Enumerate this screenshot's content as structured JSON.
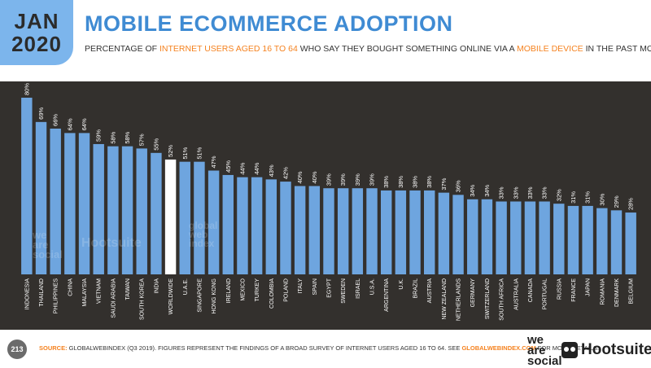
{
  "header": {
    "month": "JAN",
    "year": "2020",
    "title": "MOBILE ECOMMERCE ADOPTION",
    "subtitle_parts": [
      "PERCENTAGE OF ",
      "INTERNET USERS AGED 16 TO 64",
      " WHO SAY THEY BOUGHT SOMETHING ONLINE VIA A ",
      "MOBILE DEVICE",
      " IN THE PAST MONTH"
    ]
  },
  "colors": {
    "bar": "#6ea5df",
    "highlight_bar": "#ffffff",
    "panel": "#33302d",
    "accent": "#f5821f",
    "title": "#3f8bd3"
  },
  "watermarks": {
    "we_are_social": "we are social",
    "hootsuite": "Hootsuite",
    "gwi": "global web index"
  },
  "chart_data": {
    "type": "bar",
    "title": "MOBILE ECOMMERCE ADOPTION",
    "xlabel": "",
    "ylabel": "",
    "ylim": [
      0,
      80
    ],
    "grid": false,
    "highlight": "WORLDWIDE",
    "categories": [
      "INDONESIA",
      "THAILAND",
      "PHILIPPINES",
      "CHINA",
      "MALAYSIA",
      "VIETNAM",
      "SAUDI ARABIA",
      "TAIWAN",
      "SOUTH KOREA",
      "INDIA",
      "WORLDWIDE",
      "U.A.E.",
      "SINGAPORE",
      "HONG KONG",
      "IRELAND",
      "MEXICO",
      "TURKEY",
      "COLOMBIA",
      "POLAND",
      "ITALY",
      "SPAIN",
      "EGYPT",
      "SWEDEN",
      "ISRAEL",
      "U.S.A.",
      "ARGENTINA",
      "U.K.",
      "BRAZIL",
      "AUSTRIA",
      "NEW ZEALAND",
      "NETHERLANDS",
      "GERMANY",
      "SWITZERLAND",
      "SOUTH AFRICA",
      "AUSTRALIA",
      "CANADA",
      "PORTUGAL",
      "RUSSIA",
      "FRANCE",
      "JAPAN",
      "ROMANIA",
      "DENMARK",
      "BELGIUM"
    ],
    "values": [
      80,
      69,
      66,
      64,
      64,
      59,
      58,
      58,
      57,
      55,
      52,
      51,
      51,
      47,
      45,
      44,
      44,
      43,
      42,
      40,
      40,
      39,
      39,
      39,
      39,
      38,
      38,
      38,
      38,
      37,
      36,
      34,
      34,
      33,
      33,
      33,
      33,
      32,
      31,
      31,
      30,
      29,
      28
    ],
    "value_labels": [
      "80%",
      "69%",
      "66%",
      "64%",
      "64%",
      "59%",
      "58%",
      "58%",
      "57%",
      "55%",
      "52%",
      "51%",
      "51%",
      "47%",
      "45%",
      "44%",
      "44%",
      "43%",
      "42%",
      "40%",
      "40%",
      "39%",
      "39%",
      "39%",
      "39%",
      "38%",
      "38%",
      "38%",
      "38%",
      "37%",
      "36%",
      "34%",
      "34%",
      "33%",
      "33%",
      "33%",
      "33%",
      "32%",
      "31%",
      "31%",
      "30%",
      "29%",
      "28%"
    ]
  },
  "footer": {
    "page_number": "213",
    "source_label": "SOURCE:",
    "source_text": " GLOBALWEBINDEX (Q3 2019). FIGURES REPRESENT THE FINDINGS OF A BROAD SURVEY OF INTERNET USERS AGED 16 TO 64. SEE ",
    "source_link": "GLOBALWEBINDEX.COM",
    "source_tail": " FOR MORE DETAILS.",
    "logo_we_are_social": "we are social",
    "logo_hootsuite": "Hootsuite"
  }
}
